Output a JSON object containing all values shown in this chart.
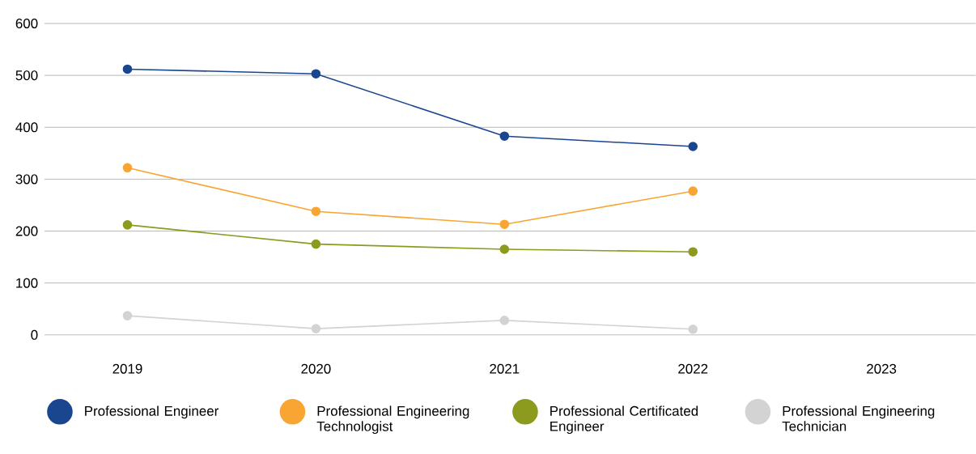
{
  "chart_data": {
    "type": "line",
    "categories": [
      "2019",
      "2020",
      "2021",
      "2022",
      "2023"
    ],
    "series": [
      {
        "name": "Professional Engineer",
        "color": "#1a468f",
        "values": [
          512,
          503,
          383,
          363,
          null
        ]
      },
      {
        "name": "Professional Engineering Technologist",
        "color": "#f9a533",
        "values": [
          322,
          238,
          213,
          277,
          null
        ]
      },
      {
        "name": "Professional Certificated Engineer",
        "color": "#8c9a1e",
        "values": [
          212,
          175,
          165,
          160,
          null
        ]
      },
      {
        "name": "Professional Engineering Technician",
        "color": "#d3d3d3",
        "values": [
          37,
          12,
          28,
          11,
          null
        ]
      }
    ],
    "ylim": [
      0,
      600
    ],
    "yticks": [
      0,
      100,
      200,
      300,
      400,
      500,
      600
    ],
    "grid": "y",
    "legend": "bottom",
    "marker": "circle",
    "line_style": "solid"
  }
}
